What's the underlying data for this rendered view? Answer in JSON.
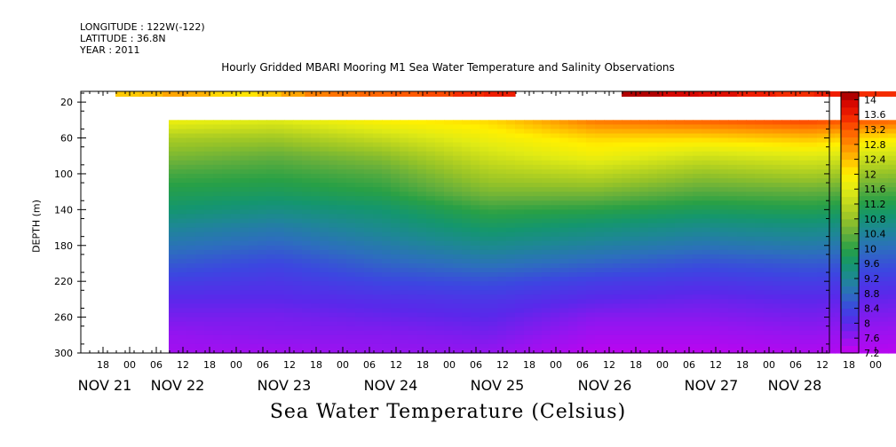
{
  "header": {
    "longitude": "LONGITUDE : 122W(-122)",
    "latitude": "LATITUDE : 36.8N",
    "year": "YEAR : 2011"
  },
  "chart_data": {
    "type": "heatmap",
    "title": "Hourly Gridded MBARI Mooring M1 Sea Water Temperature and Salinity Observations",
    "xlabel": "Sea Water Temperature (Celsius)",
    "ylabel": "DEPTH (m)",
    "y_ticks": [
      20,
      60,
      100,
      140,
      180,
      220,
      260,
      300
    ],
    "ylim": [
      300,
      8
    ],
    "x_hour_ticks": [
      "18",
      "00",
      "06",
      "12",
      "18",
      "00",
      "06",
      "12",
      "18",
      "00",
      "06",
      "12",
      "18",
      "00",
      "06",
      "12",
      "18",
      "00",
      "06",
      "12",
      "18",
      "00",
      "06",
      "12",
      "18",
      "00",
      "06",
      "12",
      "18",
      "00",
      "06",
      "12"
    ],
    "x_day_labels": [
      "NOV 21",
      "NOV 22",
      "NOV 23",
      "NOV 24",
      "NOV 25",
      "NOV 26",
      "NOV 27",
      "NOV 28"
    ],
    "colorbar_ticks": [
      "14",
      "13.6",
      "13.2",
      "12.8",
      "12.4",
      "12",
      "11.6",
      "11.2",
      "10.8",
      "10.4",
      "10",
      "9.6",
      "9.2",
      "8.8",
      "8.4",
      "8",
      "7.6",
      "7.2"
    ],
    "colorbar_range": [
      7.2,
      14.2
    ],
    "surface_temperature": {
      "depth": 11,
      "segments": [
        {
          "from_hours": 12,
          "to_hours": 60,
          "values": [
            12.3,
            12.4,
            12.6,
            12.5,
            12.2,
            12.1,
            12.3,
            12.6,
            12.9
          ]
        },
        {
          "from_hours": 60,
          "to_hours": 102,
          "values": [
            13.0,
            13.1,
            13.2,
            13.3,
            13.5,
            13.6
          ]
        },
        {
          "from_hours": 126,
          "to_hours": 204,
          "values": [
            14.1,
            13.9,
            13.8,
            13.6,
            13.5,
            13.6,
            13.5,
            13.5,
            13.6
          ]
        }
      ]
    },
    "profile_start_depth": 40,
    "profile_depths": [
      40,
      60,
      80,
      100,
      120,
      140,
      160,
      180,
      200,
      220,
      240,
      260,
      280,
      300
    ],
    "profile_times_hours": [
      12,
      36,
      60,
      84,
      108,
      132,
      156,
      180,
      204
    ],
    "temperature_profiles": [
      [
        11.8,
        11.0,
        10.6,
        10.2,
        9.9,
        9.6,
        9.2,
        8.9,
        8.6,
        8.3,
        8.0,
        7.8,
        7.6,
        7.5
      ],
      [
        11.6,
        10.9,
        10.4,
        10.1,
        9.8,
        9.4,
        9.0,
        8.7,
        8.4,
        8.2,
        8.0,
        7.8,
        7.7,
        7.5
      ],
      [
        12.0,
        11.3,
        10.7,
        10.3,
        10.0,
        9.6,
        9.3,
        9.0,
        8.7,
        8.4,
        8.1,
        7.9,
        7.7,
        7.6
      ],
      [
        12.2,
        11.8,
        11.4,
        11.0,
        10.6,
        10.1,
        9.7,
        9.3,
        8.9,
        8.5,
        8.2,
        8.0,
        7.8,
        7.6
      ],
      [
        13.0,
        12.2,
        11.8,
        11.2,
        10.6,
        10.0,
        9.5,
        9.1,
        8.7,
        8.3,
        8.0,
        7.7,
        7.5,
        7.3
      ],
      [
        13.2,
        12.2,
        11.4,
        10.8,
        10.3,
        9.8,
        9.3,
        8.9,
        8.5,
        8.2,
        7.9,
        7.7,
        7.5,
        7.3
      ],
      [
        13.4,
        12.4,
        11.6,
        11.0,
        10.4,
        9.9,
        9.4,
        9.0,
        8.6,
        8.3,
        8.0,
        7.8,
        7.6,
        7.4
      ],
      [
        13.1,
        12.0,
        11.3,
        10.7,
        10.2,
        9.7,
        9.2,
        8.8,
        8.5,
        8.2,
        7.9,
        7.7,
        7.5,
        7.3
      ],
      [
        13.0,
        11.8,
        11.1,
        10.5,
        10.0,
        9.6,
        9.2,
        8.8,
        8.5,
        8.2,
        8.0,
        7.8,
        7.6,
        7.4
      ]
    ]
  }
}
